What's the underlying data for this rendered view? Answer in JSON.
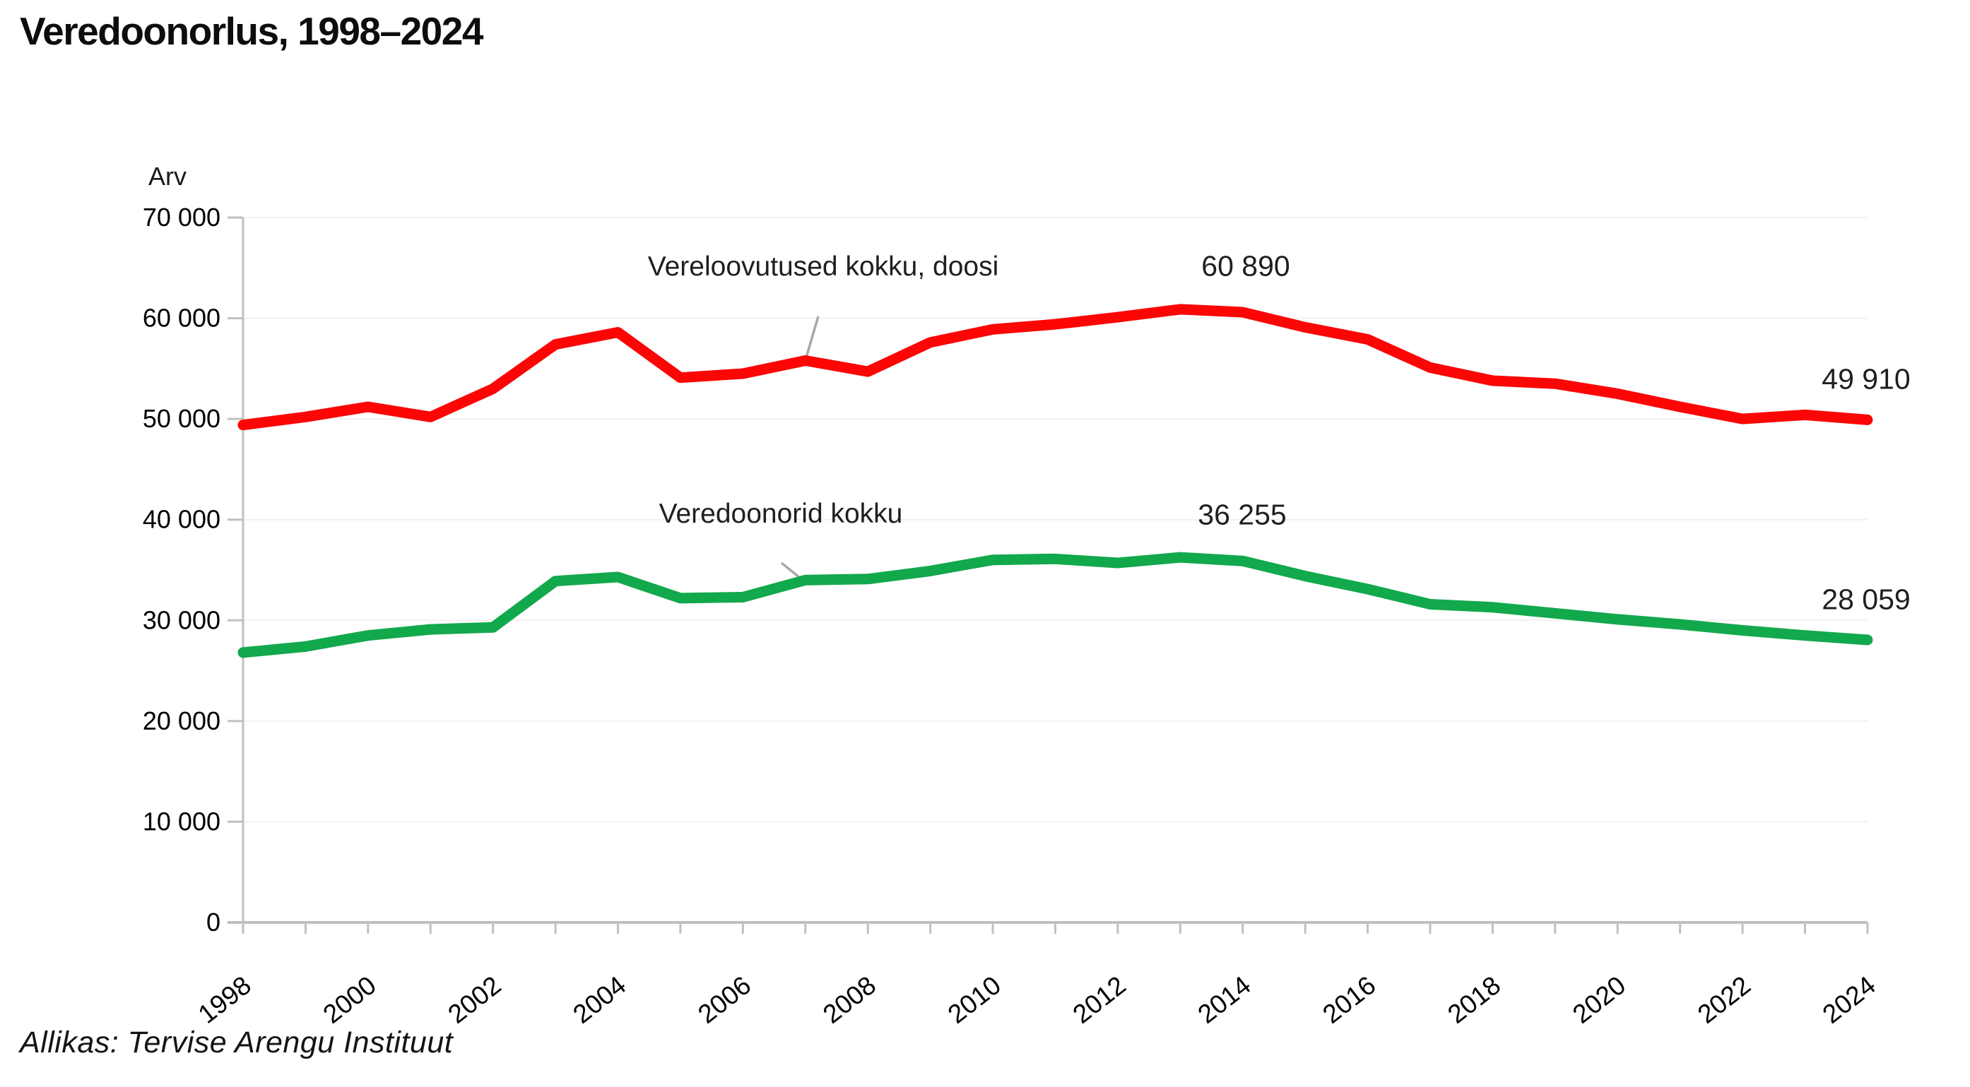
{
  "title": "Veredoonorlus, 1998–2024",
  "source": "Allikas: Tervise Arengu Instituut",
  "y_axis": {
    "label": "Arv",
    "tick_labels": [
      "0",
      "10 000",
      "20 000",
      "30 000",
      "40 000",
      "50 000",
      "60 000",
      "70 000"
    ],
    "tick_values": [
      0,
      10000,
      20000,
      30000,
      40000,
      50000,
      60000,
      70000
    ]
  },
  "x_axis": {
    "tick_labels": [
      "1998",
      "2000",
      "2002",
      "2004",
      "2006",
      "2008",
      "2010",
      "2012",
      "2014",
      "2016",
      "2018",
      "2020",
      "2022",
      "2024"
    ]
  },
  "annotations": {
    "series1_label": "Vereloovutused kokku, doosi",
    "series1_peak": "60 890",
    "series1_end": "49 910",
    "series2_label": "Veredoonorid kokku",
    "series2_peak": "36 255",
    "series2_end": "28 059"
  },
  "colors": {
    "series1": "#fb0505",
    "series2": "#12a84c",
    "grid": "#f1f1f1",
    "axis": "#c0c0c0",
    "leader": "#a8a8a8",
    "text": "#000000"
  },
  "chart_data": {
    "type": "line",
    "title": "Veredoonorlus, 1998–2024",
    "xlabel": "",
    "ylabel": "Arv",
    "ylim": [
      0,
      70000
    ],
    "grid": true,
    "legend_position": "inline-annotations",
    "x": [
      1998,
      1999,
      2000,
      2001,
      2002,
      2003,
      2004,
      2005,
      2006,
      2007,
      2008,
      2009,
      2010,
      2011,
      2012,
      2013,
      2014,
      2015,
      2016,
      2017,
      2018,
      2019,
      2020,
      2021,
      2022,
      2023,
      2024
    ],
    "series": [
      {
        "name": "Vereloovutused kokku, doosi",
        "color": "#fb0505",
        "values": [
          49400,
          50200,
          51200,
          50200,
          53000,
          57400,
          58600,
          54100,
          54500,
          55800,
          54700,
          57600,
          58900,
          59400,
          60100,
          60890,
          60600,
          59100,
          57900,
          55100,
          53800,
          53500,
          52500,
          51200,
          50000,
          50400,
          49910
        ]
      },
      {
        "name": "Veredoonorid kokku",
        "color": "#12a84c",
        "values": [
          26800,
          27400,
          28500,
          29100,
          29300,
          33900,
          34300,
          32200,
          32300,
          34000,
          34100,
          34900,
          36000,
          36100,
          35700,
          36255,
          35900,
          34400,
          33100,
          31600,
          31300,
          30700,
          30100,
          29600,
          29000,
          28500,
          28059
        ]
      }
    ],
    "annotations": [
      {
        "text": "60 890",
        "series": "Vereloovutused kokku, doosi",
        "year": 2013
      },
      {
        "text": "49 910",
        "series": "Vereloovutused kokku, doosi",
        "year": 2024
      },
      {
        "text": "36 255",
        "series": "Veredoonorid kokku",
        "year": 2013
      },
      {
        "text": "28 059",
        "series": "Veredoonorid kokku",
        "year": 2024
      }
    ]
  }
}
